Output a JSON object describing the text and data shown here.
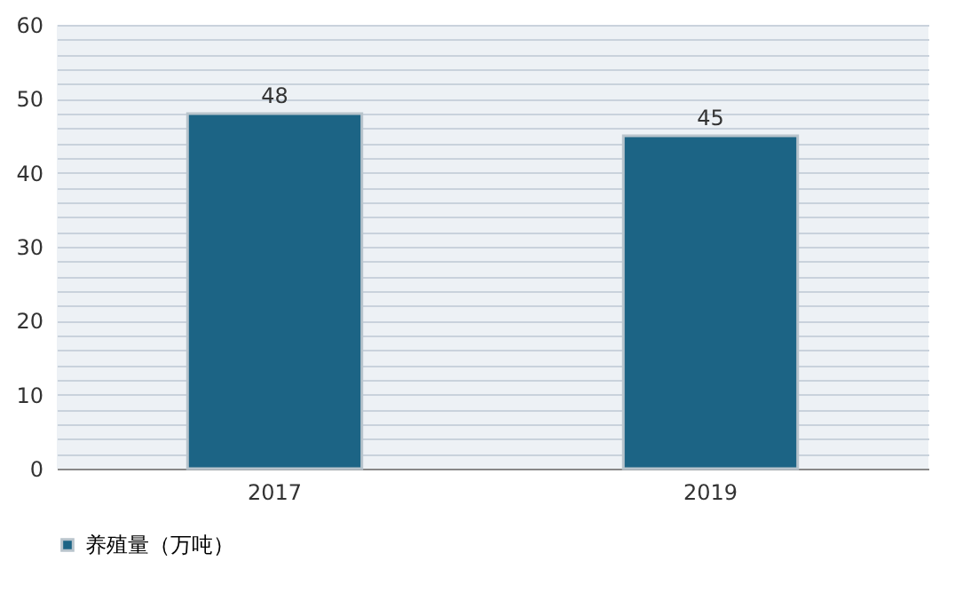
{
  "chart_data": {
    "type": "bar",
    "categories": [
      "2017",
      "2019"
    ],
    "series": [
      {
        "name": "养殖量（万吨）",
        "color": "#1c6485",
        "values": [
          48,
          45
        ]
      }
    ],
    "ylim": [
      0,
      60
    ],
    "yticks": [
      0,
      {
        "value": 2,
        "label": null
      },
      {
        "value": 4,
        "label": null
      },
      {
        "value": 6,
        "label": null
      },
      {
        "value": 8,
        "label": null
      },
      10,
      {
        "value": 12,
        "label": null
      },
      {
        "value": 14,
        "label": null
      },
      {
        "value": 16,
        "label": null
      },
      {
        "value": 18,
        "label": null
      },
      20,
      {
        "value": 22,
        "label": null
      },
      {
        "value": 24,
        "label": null
      },
      {
        "value": 26,
        "label": null
      },
      {
        "value": 28,
        "label": null
      },
      30,
      {
        "value": 32,
        "label": null
      },
      {
        "value": 34,
        "label": null
      },
      {
        "value": 36,
        "label": null
      },
      {
        "value": 38,
        "label": null
      },
      40,
      {
        "value": 42,
        "label": null
      },
      {
        "value": 44,
        "label": null
      },
      {
        "value": 46,
        "label": null
      },
      {
        "value": 48,
        "label": null
      },
      50,
      {
        "value": 52,
        "label": null
      },
      {
        "value": 54,
        "label": null
      },
      {
        "value": 56,
        "label": null
      },
      {
        "value": 58,
        "label": null
      },
      60
    ],
    "grid": "y",
    "legend": "bottom",
    "data_labels": true
  }
}
